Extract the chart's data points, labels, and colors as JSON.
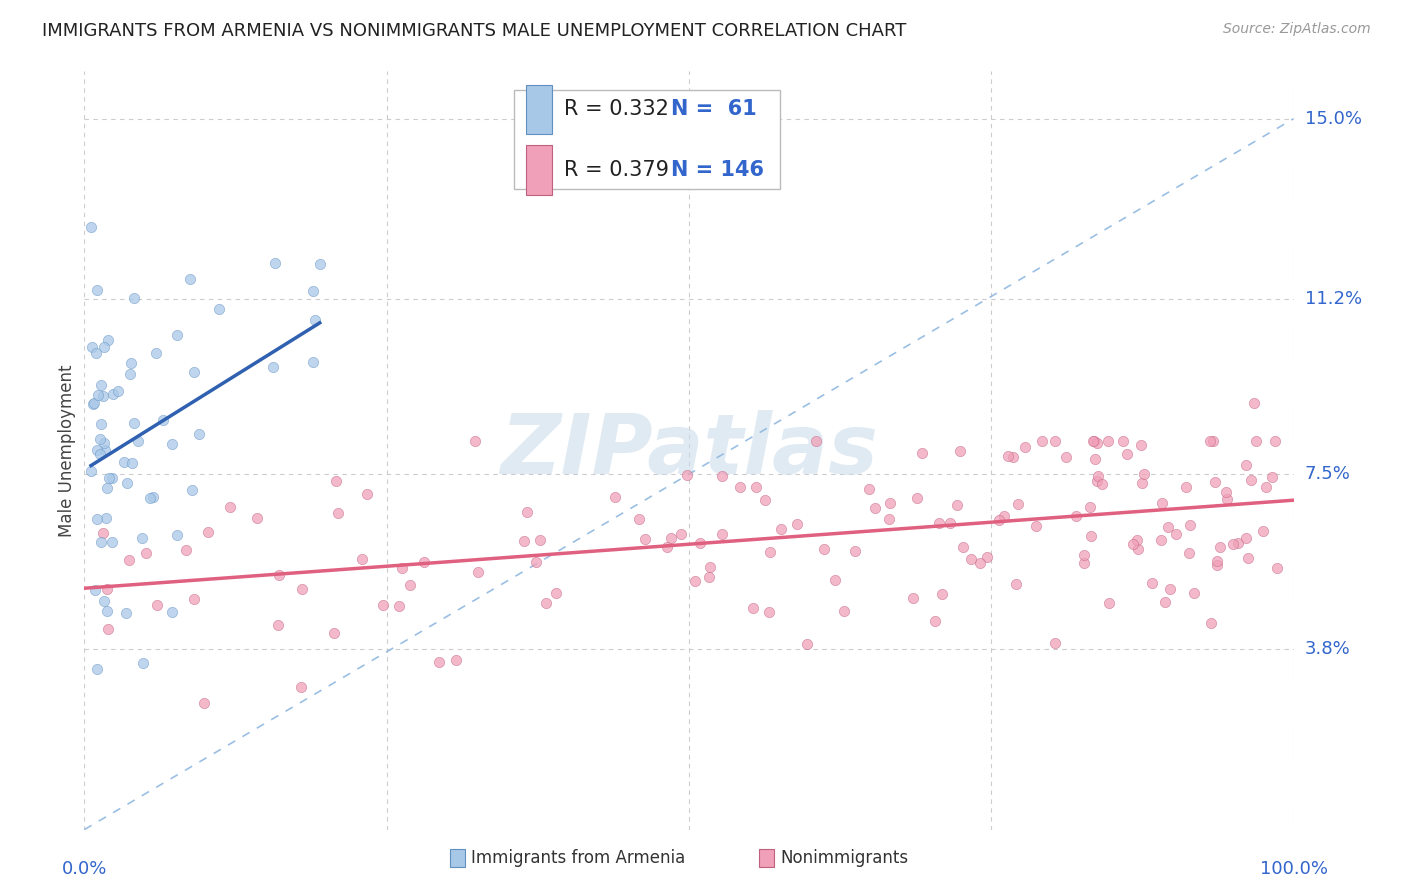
{
  "title": "IMMIGRANTS FROM ARMENIA VS NONIMMIGRANTS MALE UNEMPLOYMENT CORRELATION CHART",
  "source": "Source: ZipAtlas.com",
  "ylabel": "Male Unemployment",
  "ytick_vals": [
    0.038,
    0.075,
    0.112,
    0.15
  ],
  "ytick_labels": [
    "3.8%",
    "7.5%",
    "11.2%",
    "15.0%"
  ],
  "xlim": [
    0.0,
    1.0
  ],
  "ylim": [
    0.0,
    0.16
  ],
  "color_armenia": "#a8c8e8",
  "color_armenia_edge": "#6090c0",
  "color_nonimmigrant": "#f0a0b8",
  "color_nonimmigrant_edge": "#c06080",
  "color_armenia_line": "#3060b0",
  "color_nonimmigrant_line": "#e06080",
  "color_diagonal": "#90b8e0",
  "background_color": "#ffffff",
  "grid_color": "#cccccc",
  "scatter_alpha": 0.75,
  "scatter_size": 55,
  "title_fontsize": 13,
  "source_fontsize": 10,
  "tick_label_fontsize": 13,
  "legend_fontsize": 15,
  "ylabel_fontsize": 12,
  "watermark_text": "ZIPatlas",
  "watermark_color": "#ccdcec",
  "watermark_fontsize": 60,
  "legend_r1": "R = 0.332",
  "legend_n1": "N =  61",
  "legend_r2": "R = 0.379",
  "legend_n2": "N = 146",
  "bottom_label1": "Immigrants from Armenia",
  "bottom_label2": "Nonimmigrants"
}
